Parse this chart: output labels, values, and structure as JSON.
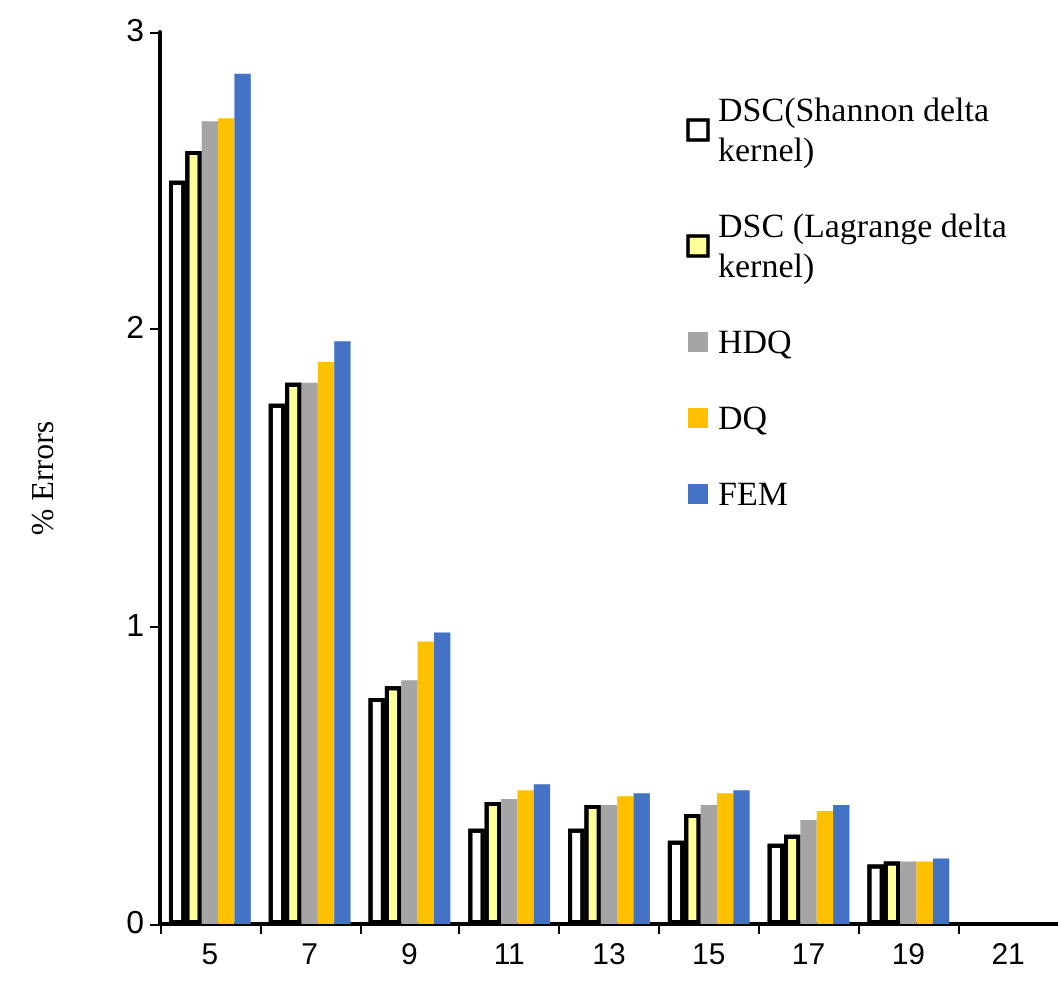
{
  "chart_data": {
    "type": "bar",
    "ylabel": "% Errors",
    "categories": [
      "5",
      "7",
      "9",
      "11",
      "13",
      "15",
      "17",
      "19",
      "21"
    ],
    "series": [
      {
        "name": "DSC(Shannon delta kernel)",
        "color": "#ffffff",
        "values": [
          2.5,
          1.75,
          0.76,
          0.32,
          0.32,
          0.28,
          0.27,
          0.2,
          null
        ]
      },
      {
        "name": "DSC (Lagrange delta kernel)",
        "color": "#ffff99",
        "values": [
          2.6,
          1.82,
          0.8,
          0.41,
          0.4,
          0.37,
          0.3,
          0.21,
          null
        ]
      },
      {
        "name": "HDQ",
        "color": "#a5a5a5",
        "values": [
          2.7,
          1.82,
          0.82,
          0.42,
          0.4,
          0.4,
          0.35,
          0.21,
          null
        ]
      },
      {
        "name": "DQ",
        "color": "#ffc000",
        "values": [
          2.71,
          1.89,
          0.95,
          0.45,
          0.43,
          0.44,
          0.38,
          0.21,
          null
        ]
      },
      {
        "name": "FEM",
        "color": "#4472c4",
        "values": [
          2.86,
          1.96,
          0.98,
          0.47,
          0.44,
          0.45,
          0.4,
          0.22,
          null
        ]
      }
    ],
    "ylim": [
      0,
      3
    ],
    "yticks": [
      0,
      1,
      2,
      3
    ],
    "grid": false,
    "legend": "top right"
  }
}
